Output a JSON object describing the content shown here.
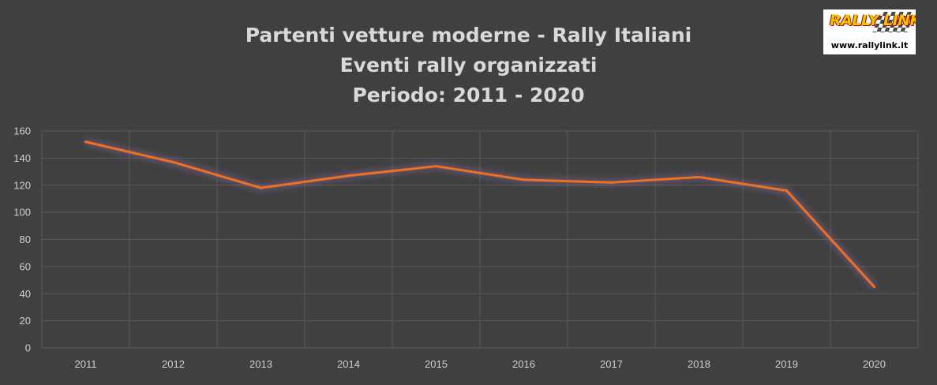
{
  "chart_data": {
    "type": "line",
    "title": [
      "Partenti vetture moderne - Rally Italiani",
      "Eventi rally organizzati",
      "Periodo: 2011 - 2020"
    ],
    "categories": [
      "2011",
      "2012",
      "2013",
      "2014",
      "2015",
      "2016",
      "2017",
      "2018",
      "2019",
      "2020"
    ],
    "series": [
      {
        "values": [
          152,
          137,
          118,
          127,
          134,
          124,
          122,
          126,
          116,
          45
        ],
        "color": "#f07020"
      }
    ],
    "ylim": [
      0,
      160
    ],
    "yticks": [
      0,
      20,
      40,
      60,
      80,
      100,
      120,
      140,
      160
    ],
    "grid": true,
    "legend": "none"
  },
  "logo": {
    "brand": "RALLY LINK",
    "url": "www.rallylink.it"
  },
  "colors": {
    "background": "#404040",
    "gridline": "#5a5a5a",
    "text": "#d9d9d9"
  }
}
